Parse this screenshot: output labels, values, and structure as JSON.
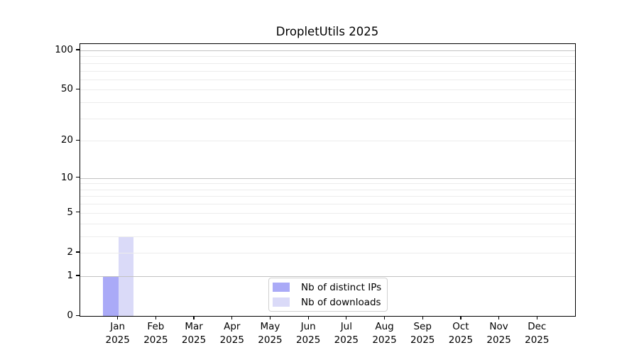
{
  "chart_data": {
    "type": "bar",
    "title": "DropletUtils 2025",
    "xlabel": "",
    "ylabel": "",
    "year_label": "2025",
    "categories": [
      "Jan",
      "Feb",
      "Mar",
      "Apr",
      "May",
      "Jun",
      "Jul",
      "Aug",
      "Sep",
      "Oct",
      "Nov",
      "Dec"
    ],
    "series": [
      {
        "name": "Nb of distinct IPs",
        "color": "#aaaaf7",
        "values": [
          1,
          0,
          0,
          0,
          0,
          0,
          0,
          0,
          0,
          0,
          0,
          0
        ]
      },
      {
        "name": "Nb of downloads",
        "color": "#dadaf8",
        "values": [
          3,
          0,
          0,
          0,
          0,
          0,
          0,
          0,
          0,
          0,
          0,
          0
        ]
      }
    ],
    "y_scale": "log10(1+x)",
    "y_ticks": [
      0,
      1,
      2,
      5,
      10,
      20,
      50,
      100
    ],
    "ylim": [
      0,
      112
    ],
    "grid": {
      "on": true,
      "minor_values": [
        2,
        3,
        4,
        5,
        6,
        7,
        8,
        9,
        20,
        30,
        40,
        50,
        60,
        70,
        80,
        90
      ],
      "major_values": [
        1,
        10,
        100
      ],
      "minor_color": "#ececec",
      "major_color": "#c2c2c2"
    },
    "legend": {
      "position": "lower center"
    }
  },
  "colors": {
    "background": "#ffffff",
    "axis": "#000000",
    "text": "#000000",
    "bar_distinct_ips": "#aaaaf7",
    "bar_downloads": "#dadaf8"
  }
}
